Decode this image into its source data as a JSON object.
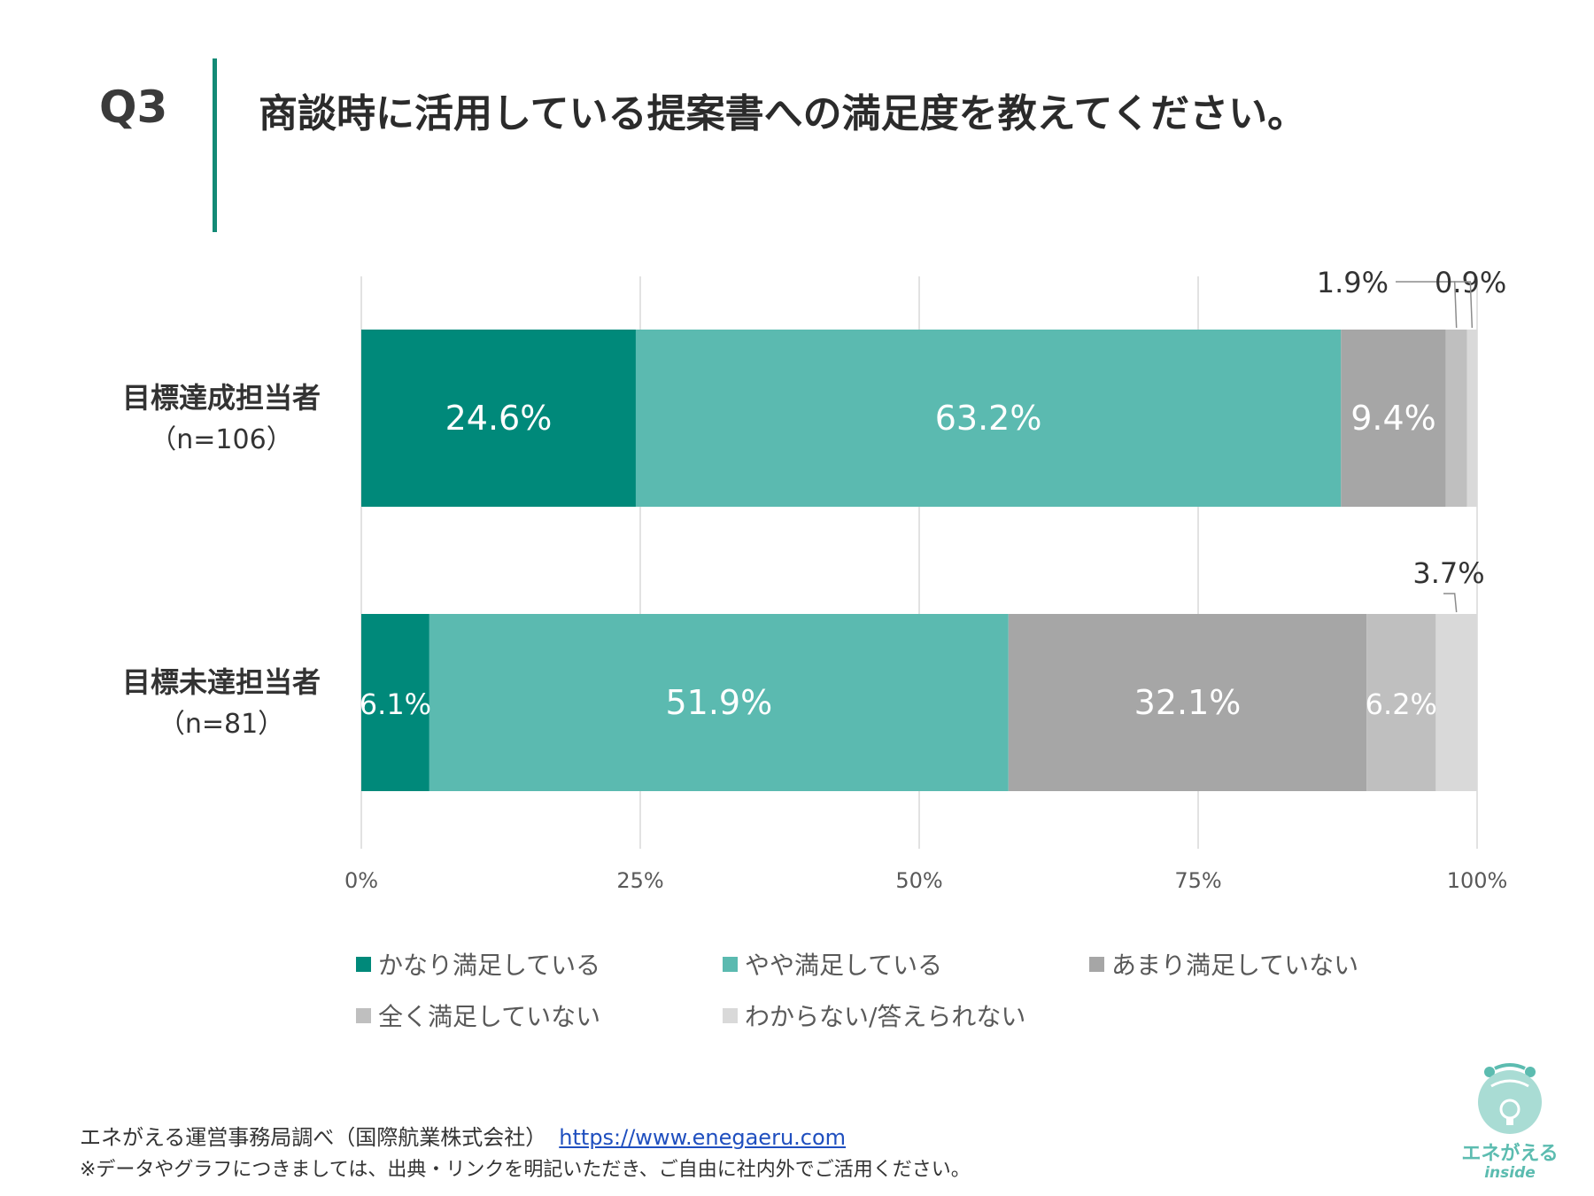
{
  "header": {
    "qnum": "Q3",
    "title": "商談時に活用している提案書への満足度を教えてください。"
  },
  "colors": {
    "accent": "#138a76",
    "series": [
      "#00897a",
      "#5bbab0",
      "#a6a6a6",
      "#bfbfbf",
      "#d9d9d9"
    ]
  },
  "chart_data": {
    "type": "bar",
    "orientation": "horizontal",
    "stacked": "100%",
    "title": "",
    "xlim": [
      0,
      100
    ],
    "x_ticks": [
      "0%",
      "25%",
      "50%",
      "75%",
      "100%"
    ],
    "grid": true,
    "legend_position": "bottom",
    "categories": [
      {
        "line1": "目標達成担当者",
        "line2": "（n=106）"
      },
      {
        "line1": "目標未達担当者",
        "line2": "（n=81）"
      }
    ],
    "series": [
      {
        "name": "かなり満足している",
        "values": [
          24.6,
          6.1
        ]
      },
      {
        "name": "やや満足している",
        "values": [
          63.2,
          51.9
        ]
      },
      {
        "name": "あまり満足していない",
        "values": [
          9.4,
          32.1
        ]
      },
      {
        "name": "全く満足していない",
        "values": [
          1.9,
          6.2
        ]
      },
      {
        "name": "わからない/答えられない",
        "values": [
          0.9,
          3.7
        ]
      }
    ],
    "data_labels": [
      [
        "24.6%",
        "63.2%",
        "9.4%",
        "1.9%",
        "0.9%"
      ],
      [
        "6.1%",
        "51.9%",
        "32.1%",
        "6.2%",
        "3.7%"
      ]
    ]
  },
  "footer": {
    "source": "エネがえる運営事務局調べ（国際航業株式会社）",
    "link": "https://www.enegaeru.com",
    "note": "※データやグラフにつきましては、出典・リンクを明記いただき、ご自由に社内外でご活用ください。"
  },
  "logo": {
    "text": "エネがえる",
    "sub": "inside"
  }
}
